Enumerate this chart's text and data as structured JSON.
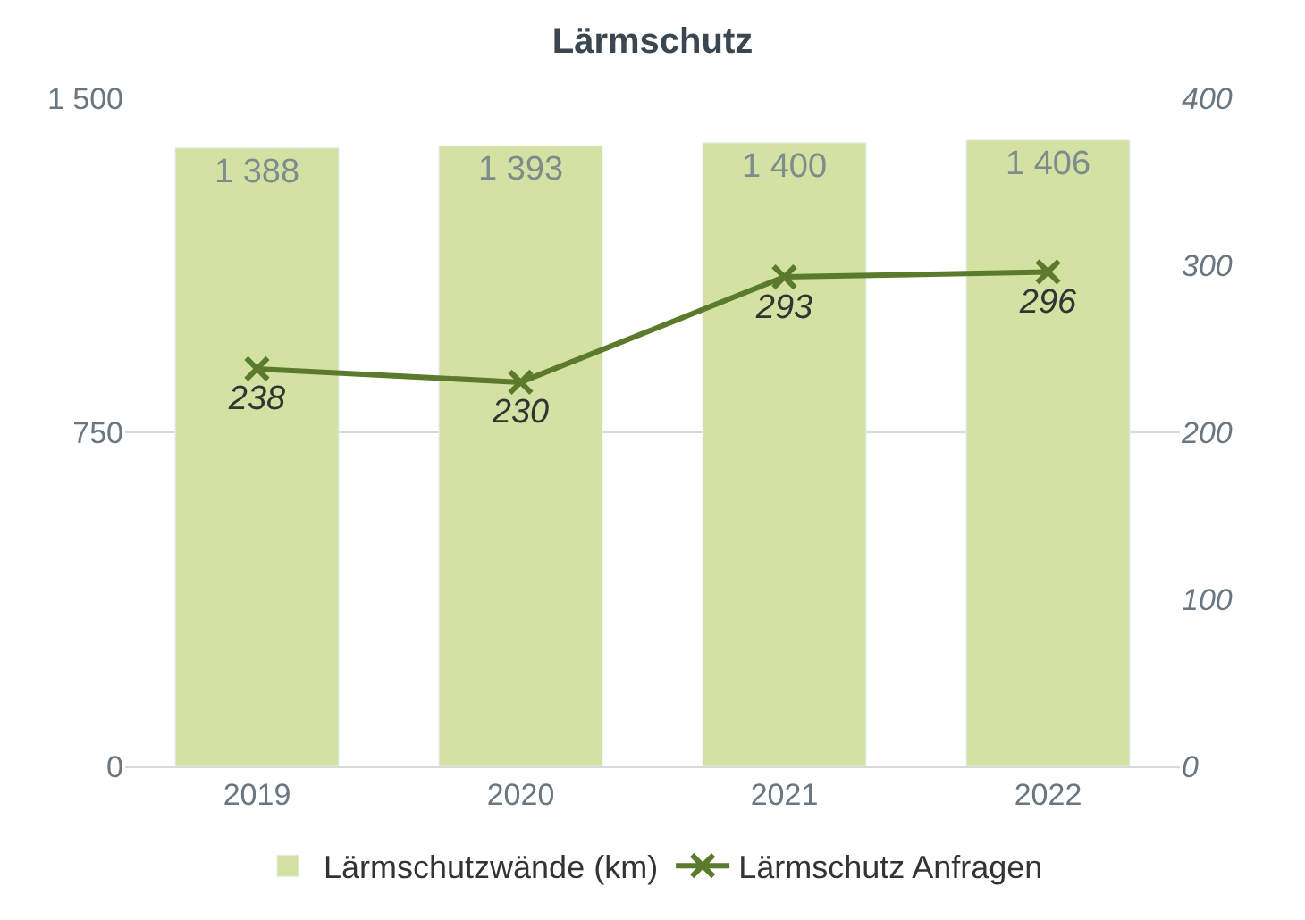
{
  "chart_data": {
    "type": "bar",
    "title": "Lärmschutz",
    "categories": [
      "2019",
      "2020",
      "2021",
      "2022"
    ],
    "series": [
      {
        "name": "Lärmschutzwände (km)",
        "color": "#d3e1a3",
        "values": [
          1388,
          1393,
          1400,
          1406
        ],
        "value_labels": [
          "1 388",
          "1 393",
          "1 400",
          "1 406"
        ]
      },
      {
        "name": "Lärmschutz Anfragen",
        "type": "line",
        "axis": "y2",
        "color": "#5b7a2b",
        "marker": "cross",
        "values": [
          238,
          230,
          293,
          296
        ],
        "value_labels": [
          "238",
          "230",
          "293",
          "296"
        ]
      }
    ],
    "ylim": [
      0,
      1500
    ],
    "yticks": [
      0,
      750,
      {
        "value": 1500,
        "label": "1 500"
      }
    ],
    "y2lim": [
      0,
      400
    ],
    "y2ticks": [
      0,
      100,
      200,
      300,
      400
    ],
    "grid": "y",
    "legend": "bottom"
  }
}
